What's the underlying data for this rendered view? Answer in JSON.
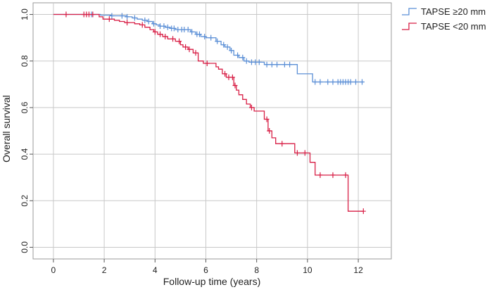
{
  "chart_data": {
    "type": "line",
    "subtype": "kaplan-meier-step",
    "title": "",
    "xlabel": "Follow-up time (years)",
    "ylabel": "Overall survival",
    "xlim": [
      -0.8,
      13.3
    ],
    "ylim": [
      -0.05,
      1.05
    ],
    "x_ticks": [
      0,
      2,
      4,
      6,
      8,
      10,
      12
    ],
    "y_ticks": [
      0.0,
      0.2,
      0.4,
      0.6,
      0.8,
      1.0
    ],
    "x_tick_labels": [
      "0",
      "2",
      "4",
      "6",
      "8",
      "10",
      "12"
    ],
    "y_tick_labels": [
      "0.0",
      "0.2",
      "0.4",
      "0.6",
      "0.8",
      "1.0"
    ],
    "grid": true,
    "legend": {
      "position": "top-right",
      "style": "step-symbol"
    },
    "series": [
      {
        "name": "TAPSE ≥20 mm",
        "color": "#5b8fd6",
        "steps": [
          [
            0,
            1.0
          ],
          [
            1.85,
            0.997
          ],
          [
            2.3,
            0.994
          ],
          [
            2.9,
            0.99
          ],
          [
            3.1,
            0.985
          ],
          [
            3.3,
            0.98
          ],
          [
            3.5,
            0.975
          ],
          [
            3.7,
            0.97
          ],
          [
            3.9,
            0.96
          ],
          [
            4.05,
            0.955
          ],
          [
            4.2,
            0.95
          ],
          [
            4.4,
            0.945
          ],
          [
            4.6,
            0.94
          ],
          [
            4.8,
            0.935
          ],
          [
            5.4,
            0.925
          ],
          [
            5.6,
            0.915
          ],
          [
            5.8,
            0.905
          ],
          [
            6.0,
            0.9
          ],
          [
            6.4,
            0.885
          ],
          [
            6.6,
            0.87
          ],
          [
            6.75,
            0.86
          ],
          [
            6.95,
            0.845
          ],
          [
            7.1,
            0.825
          ],
          [
            7.3,
            0.815
          ],
          [
            7.5,
            0.8
          ],
          [
            7.7,
            0.795
          ],
          [
            8.3,
            0.785
          ],
          [
            9.6,
            0.745
          ],
          [
            10.2,
            0.71
          ],
          [
            12.2,
            0.71
          ]
        ],
        "censor_x": [
          1.5,
          2.3,
          2.7,
          2.9,
          3.2,
          3.6,
          3.75,
          3.95,
          4.2,
          4.35,
          4.5,
          4.65,
          4.75,
          4.9,
          5.05,
          5.15,
          5.3,
          5.45,
          5.65,
          5.75,
          5.95,
          6.2,
          6.45,
          6.7,
          6.85,
          7.0,
          7.25,
          7.45,
          7.6,
          7.8,
          7.95,
          8.1,
          8.4,
          8.6,
          8.8,
          9.1,
          9.3,
          10.3,
          10.5,
          10.8,
          11.0,
          11.2,
          11.3,
          11.4,
          11.5,
          11.6,
          11.7,
          11.9,
          12.15
        ]
      },
      {
        "name": "TAPSE <20 mm",
        "color": "#d81e45",
        "steps": [
          [
            0,
            1.0
          ],
          [
            1.8,
            0.99
          ],
          [
            1.95,
            0.98
          ],
          [
            2.4,
            0.975
          ],
          [
            2.6,
            0.97
          ],
          [
            2.8,
            0.965
          ],
          [
            3.2,
            0.96
          ],
          [
            3.4,
            0.955
          ],
          [
            3.6,
            0.945
          ],
          [
            3.8,
            0.935
          ],
          [
            3.95,
            0.925
          ],
          [
            4.1,
            0.915
          ],
          [
            4.3,
            0.905
          ],
          [
            4.5,
            0.895
          ],
          [
            4.8,
            0.885
          ],
          [
            5.0,
            0.87
          ],
          [
            5.1,
            0.86
          ],
          [
            5.3,
            0.85
          ],
          [
            5.5,
            0.835
          ],
          [
            5.7,
            0.8
          ],
          [
            5.9,
            0.79
          ],
          [
            6.4,
            0.775
          ],
          [
            6.5,
            0.765
          ],
          [
            6.65,
            0.745
          ],
          [
            6.8,
            0.73
          ],
          [
            7.1,
            0.695
          ],
          [
            7.2,
            0.675
          ],
          [
            7.3,
            0.655
          ],
          [
            7.45,
            0.635
          ],
          [
            7.6,
            0.615
          ],
          [
            7.75,
            0.6
          ],
          [
            7.9,
            0.585
          ],
          [
            8.3,
            0.55
          ],
          [
            8.45,
            0.5
          ],
          [
            8.6,
            0.47
          ],
          [
            8.75,
            0.445
          ],
          [
            9.5,
            0.405
          ],
          [
            10.1,
            0.365
          ],
          [
            10.3,
            0.31
          ],
          [
            11.6,
            0.155
          ],
          [
            12.2,
            0.155
          ]
        ],
        "censor_x": [
          0.5,
          1.2,
          1.3,
          1.4,
          1.55,
          2.2,
          2.9,
          3.5,
          4.0,
          4.2,
          4.4,
          4.7,
          4.95,
          5.2,
          5.35,
          5.6,
          6.05,
          6.75,
          6.9,
          7.05,
          7.15,
          7.8,
          8.4,
          8.5,
          9.0,
          9.6,
          9.9,
          10.5,
          11.0,
          11.5,
          12.2
        ]
      }
    ]
  }
}
